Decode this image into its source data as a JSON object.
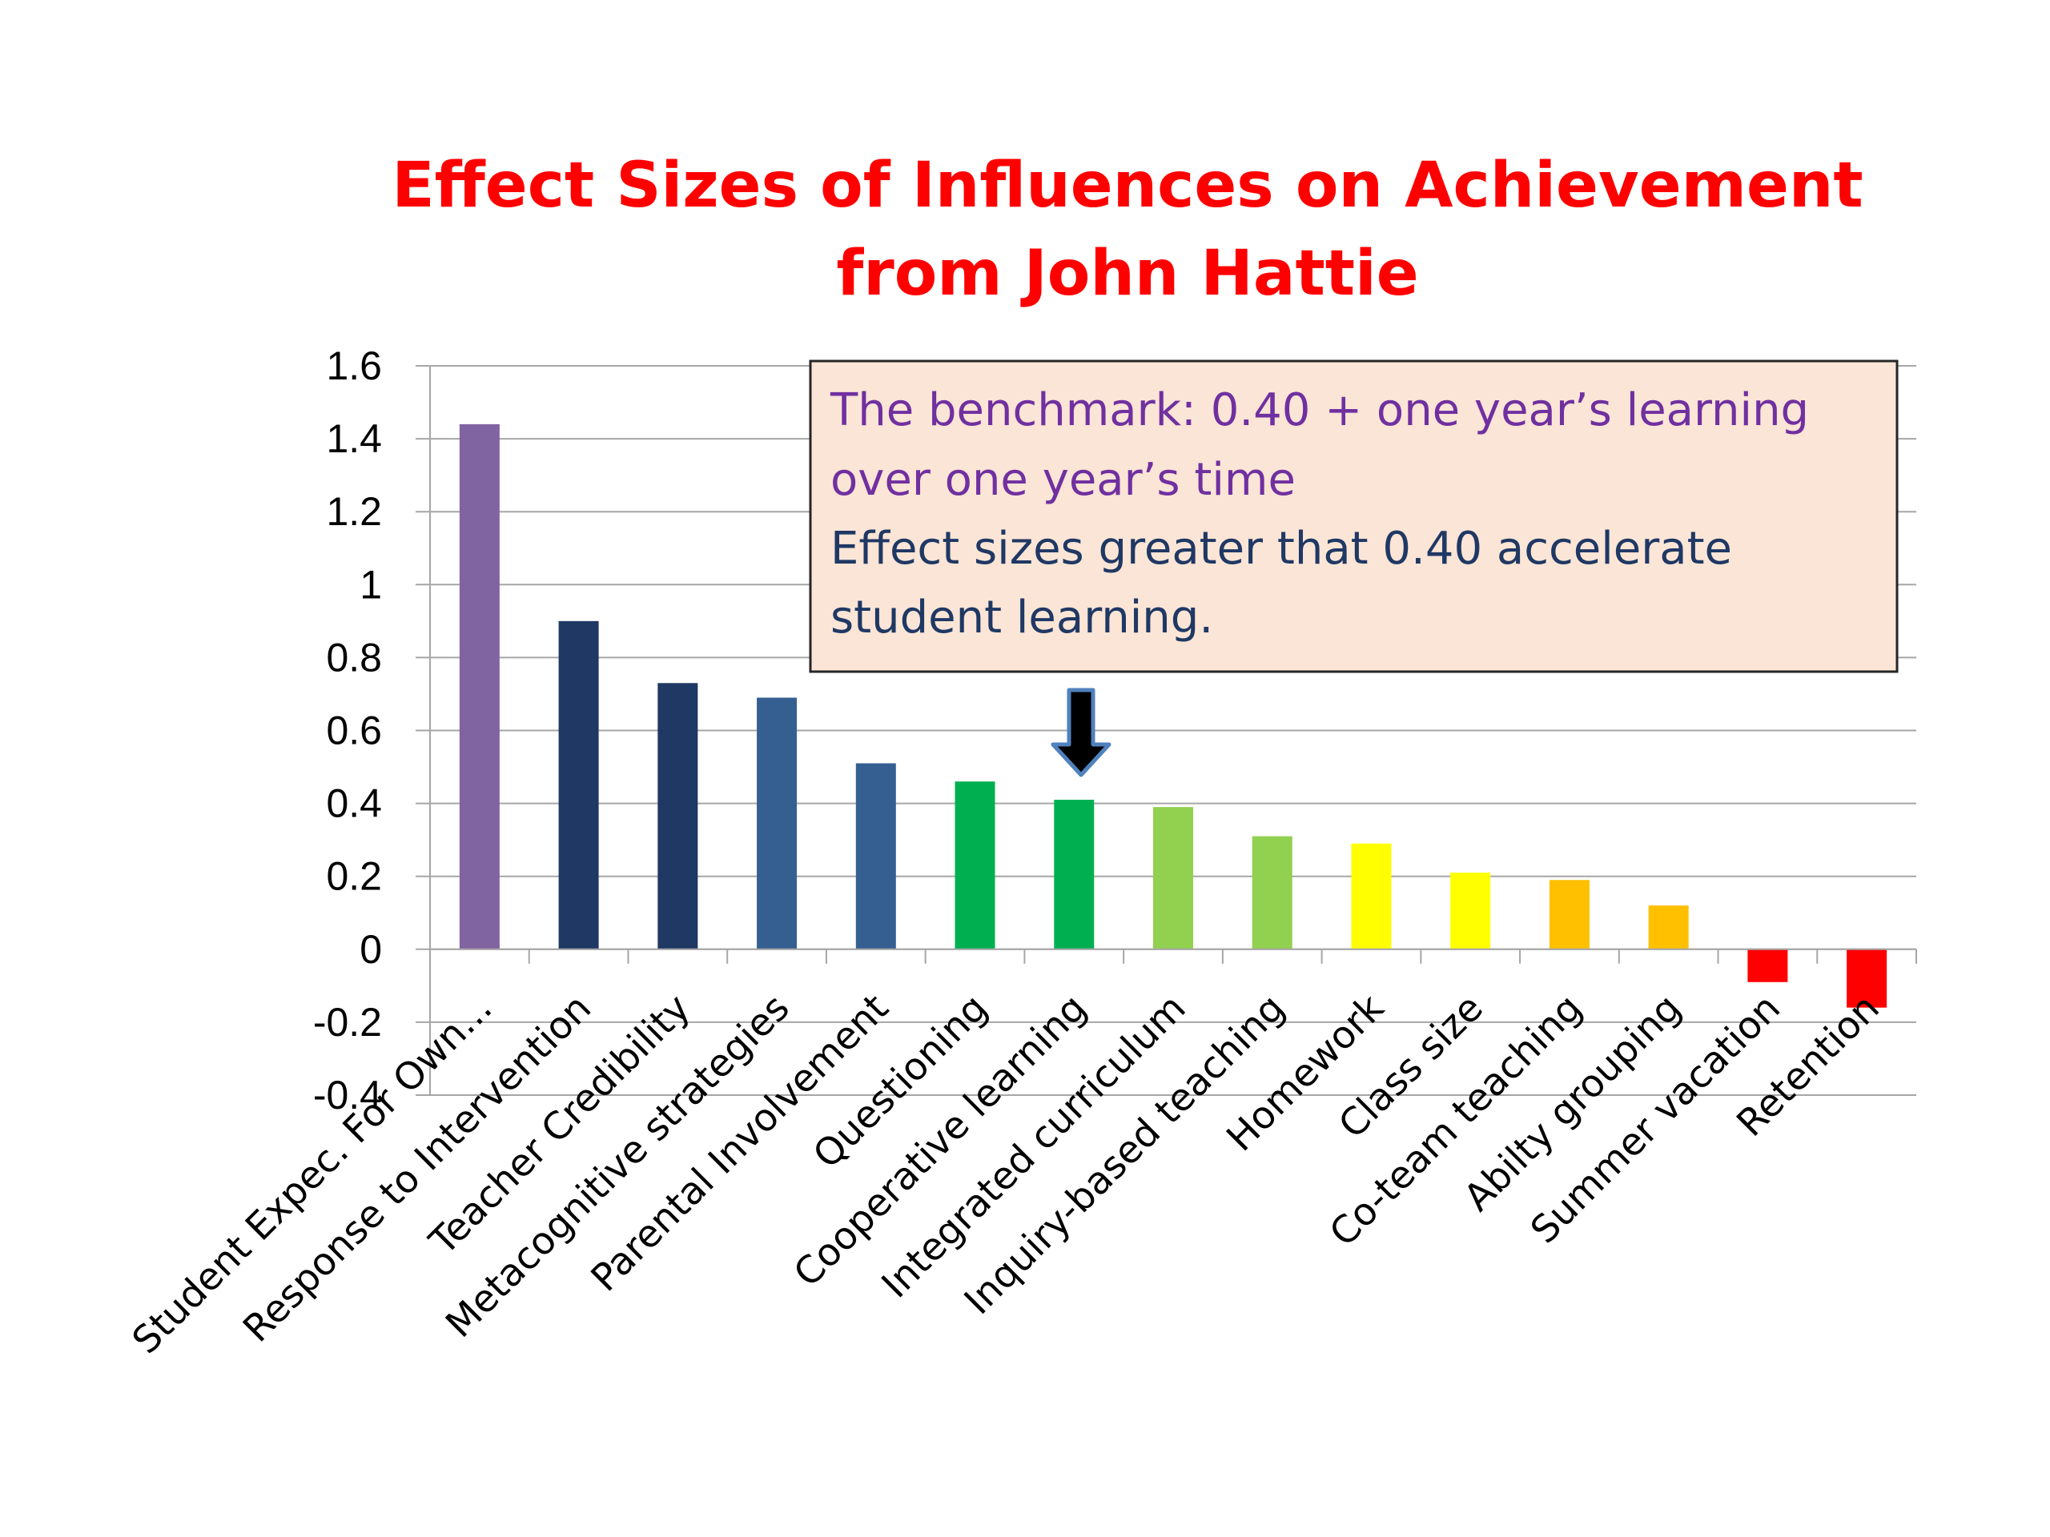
{
  "chart_data": {
    "type": "bar",
    "title": "Effect Sizes of Influences on Achievement",
    "subtitle": "from John Hattie",
    "categories": [
      "Student Expec. For Own...",
      "Response to Intervention",
      "Teacher Credibility",
      "Metacognitive strategies",
      "Parental Involvement",
      "Questioning",
      "Cooperative learning",
      "Integrated curriculum",
      "Inquiry-based teaching",
      "Homework",
      "Class size",
      "Co-team teaching",
      "Abilty grouping",
      "Summer vacation",
      "Retention"
    ],
    "values": [
      1.44,
      0.9,
      0.73,
      0.69,
      0.51,
      0.46,
      0.41,
      0.39,
      0.31,
      0.29,
      0.21,
      0.19,
      0.12,
      -0.09,
      -0.16
    ],
    "bar_colors": [
      "#8064a2",
      "#1f3864",
      "#1f3864",
      "#365f91",
      "#365f91",
      "#00b050",
      "#00b050",
      "#92d050",
      "#92d050",
      "#ffff00",
      "#ffff00",
      "#ffc000",
      "#ffc000",
      "#ff0000",
      "#ff0000"
    ],
    "ylim": [
      -0.4,
      1.6
    ],
    "yticks": [
      1.6,
      1.4,
      1.2,
      1,
      0.8,
      0.6,
      0.4,
      0.2,
      0,
      -0.2,
      -0.4
    ],
    "ytick_labels": [
      "1.6",
      "1.4",
      "1.2",
      "1",
      "0.8",
      "0.6",
      "0.4",
      "0.2",
      "0",
      "-0.2",
      "-0.4"
    ],
    "grid": true,
    "xlabel": "",
    "ylabel": "",
    "annotation": {
      "lines_purple": [
        "The benchmark: 0.40 + one year’s learning",
        "over one year’s time"
      ],
      "lines_navy": [
        "Effect sizes greater that 0.40 accelerate",
        "student learning."
      ],
      "arrow_points_to": "Cooperative learning"
    }
  },
  "colors": {
    "title": "#ff0000",
    "grid": "#a6a6a6",
    "note_bg": "#fbe5d6",
    "note_border": "#262626",
    "note_purple": "#7030a0",
    "note_navy": "#1f3864",
    "arrow": "#000000",
    "arrow_outline": "#4f81bd"
  }
}
